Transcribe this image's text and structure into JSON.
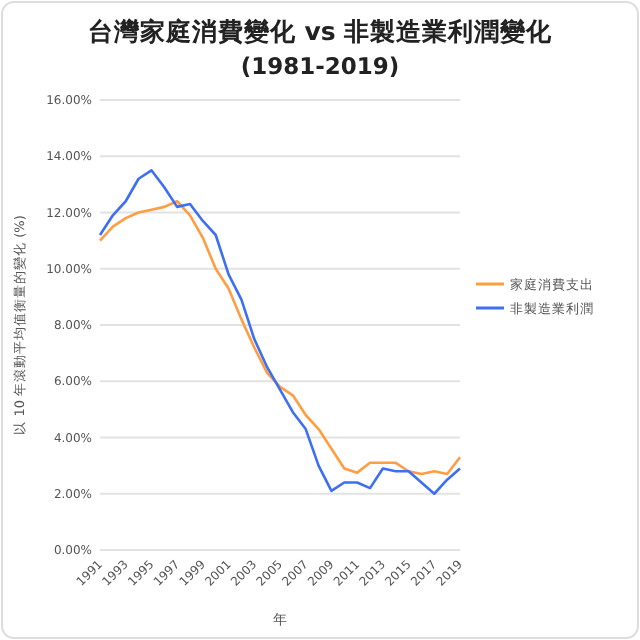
{
  "chart_data": {
    "type": "line",
    "title": "台灣家庭消費變化 vs 非製造業利潤變化",
    "subtitle": "(1981-2019)",
    "xlabel": "年",
    "ylabel": "以 10 年滾動平均值衡量的變化 (%)",
    "categories": [
      "1991",
      null,
      "1993",
      null,
      "1995",
      null,
      "1997",
      null,
      "1999",
      null,
      "2001",
      null,
      "2003",
      null,
      "2005",
      null,
      "2007",
      null,
      "2009",
      null,
      "2011",
      null,
      "2013",
      null,
      "2015",
      null,
      "2017",
      null,
      "2019"
    ],
    "series": [
      {
        "name": "家庭消費支出",
        "color": "#ff9d42",
        "values": [
          11.0,
          11.5,
          11.8,
          12.0,
          12.1,
          12.2,
          12.4,
          11.9,
          11.1,
          10.0,
          9.3,
          8.2,
          7.2,
          6.3,
          5.8,
          5.5,
          4.8,
          4.3,
          3.6,
          2.9,
          2.75,
          3.1,
          3.1,
          3.1,
          2.8,
          2.7,
          2.8,
          2.7,
          3.3
        ]
      },
      {
        "name": "非製造業利潤",
        "color": "#3d6ff5",
        "values": [
          11.2,
          11.9,
          12.4,
          13.2,
          13.5,
          12.9,
          12.2,
          12.3,
          11.7,
          11.2,
          9.8,
          8.9,
          7.5,
          6.5,
          5.7,
          4.9,
          4.3,
          3.0,
          2.1,
          2.4,
          2.4,
          2.2,
          2.9,
          2.8,
          2.8,
          2.4,
          2.0,
          2.5,
          2.9
        ]
      }
    ],
    "ylim": [
      0,
      16
    ],
    "yticks": [
      {
        "value": 0,
        "label": "0.00%"
      },
      {
        "value": 2,
        "label": "2.00%"
      },
      {
        "value": 4,
        "label": "4.00%"
      },
      {
        "value": 6,
        "label": "6.00%"
      },
      {
        "value": 8,
        "label": "8.00%"
      },
      {
        "value": 10,
        "label": "10.00%"
      },
      {
        "value": 12,
        "label": "12.00%"
      },
      {
        "value": 14,
        "label": "14.00%"
      },
      {
        "value": 16,
        "label": "16.00%"
      }
    ],
    "grid": "y",
    "legend": "right",
    "line_style": "solid",
    "marker": "none"
  }
}
